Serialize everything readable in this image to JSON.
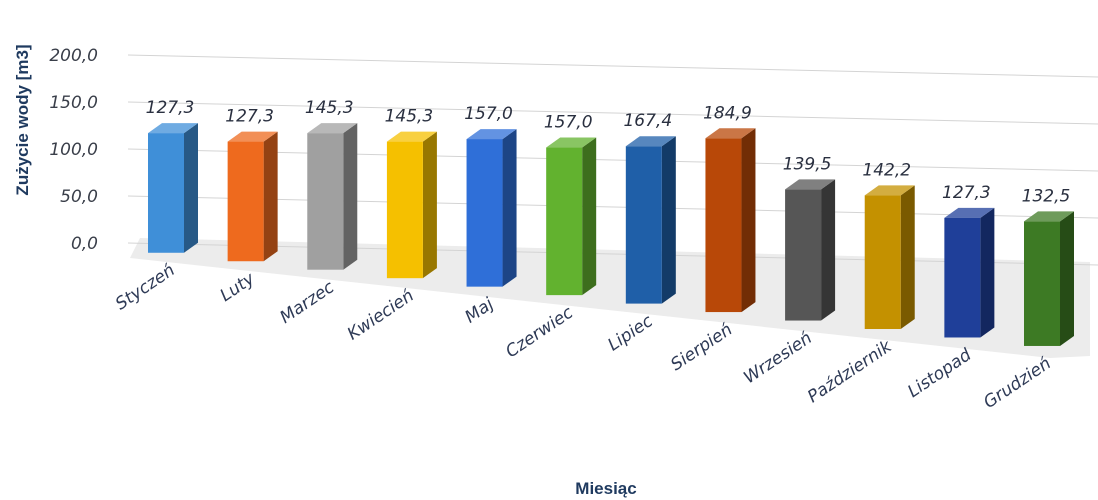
{
  "chart_data": {
    "type": "bar",
    "style": "3d-column",
    "xlabel": "Miesiąc",
    "ylabel": "Zużycie wody [m3]",
    "ylim": [
      0,
      200
    ],
    "yticks": [
      "0,0",
      "50,0",
      "100,0",
      "150,0",
      "200,0"
    ],
    "grid": true,
    "legend": "none",
    "categories": [
      "Styczeń",
      "Luty",
      "Marzec",
      "Kwiecień",
      "Maj",
      "Czerwiec",
      "Lipiec",
      "Sierpień",
      "Wrzesień",
      "Październik",
      "Listopad",
      "Grudzień"
    ],
    "values": [
      127.3,
      127.3,
      145.3,
      145.3,
      157.0,
      157.0,
      167.4,
      184.9,
      139.5,
      142.2,
      127.3,
      132.5
    ],
    "value_labels": [
      "127,3",
      "127,3",
      "145,3",
      "145,3",
      "157,0",
      "157,0",
      "167,4",
      "184,9",
      "139,5",
      "142,2",
      "127,3",
      "132,5"
    ],
    "colors": [
      "#3f8fd8",
      "#ee6a1e",
      "#a0a0a0",
      "#f5c000",
      "#2f6fd8",
      "#62b22f",
      "#1f5fa8",
      "#b84808",
      "#565656",
      "#c49100",
      "#1f3f99",
      "#3d7a24"
    ]
  }
}
